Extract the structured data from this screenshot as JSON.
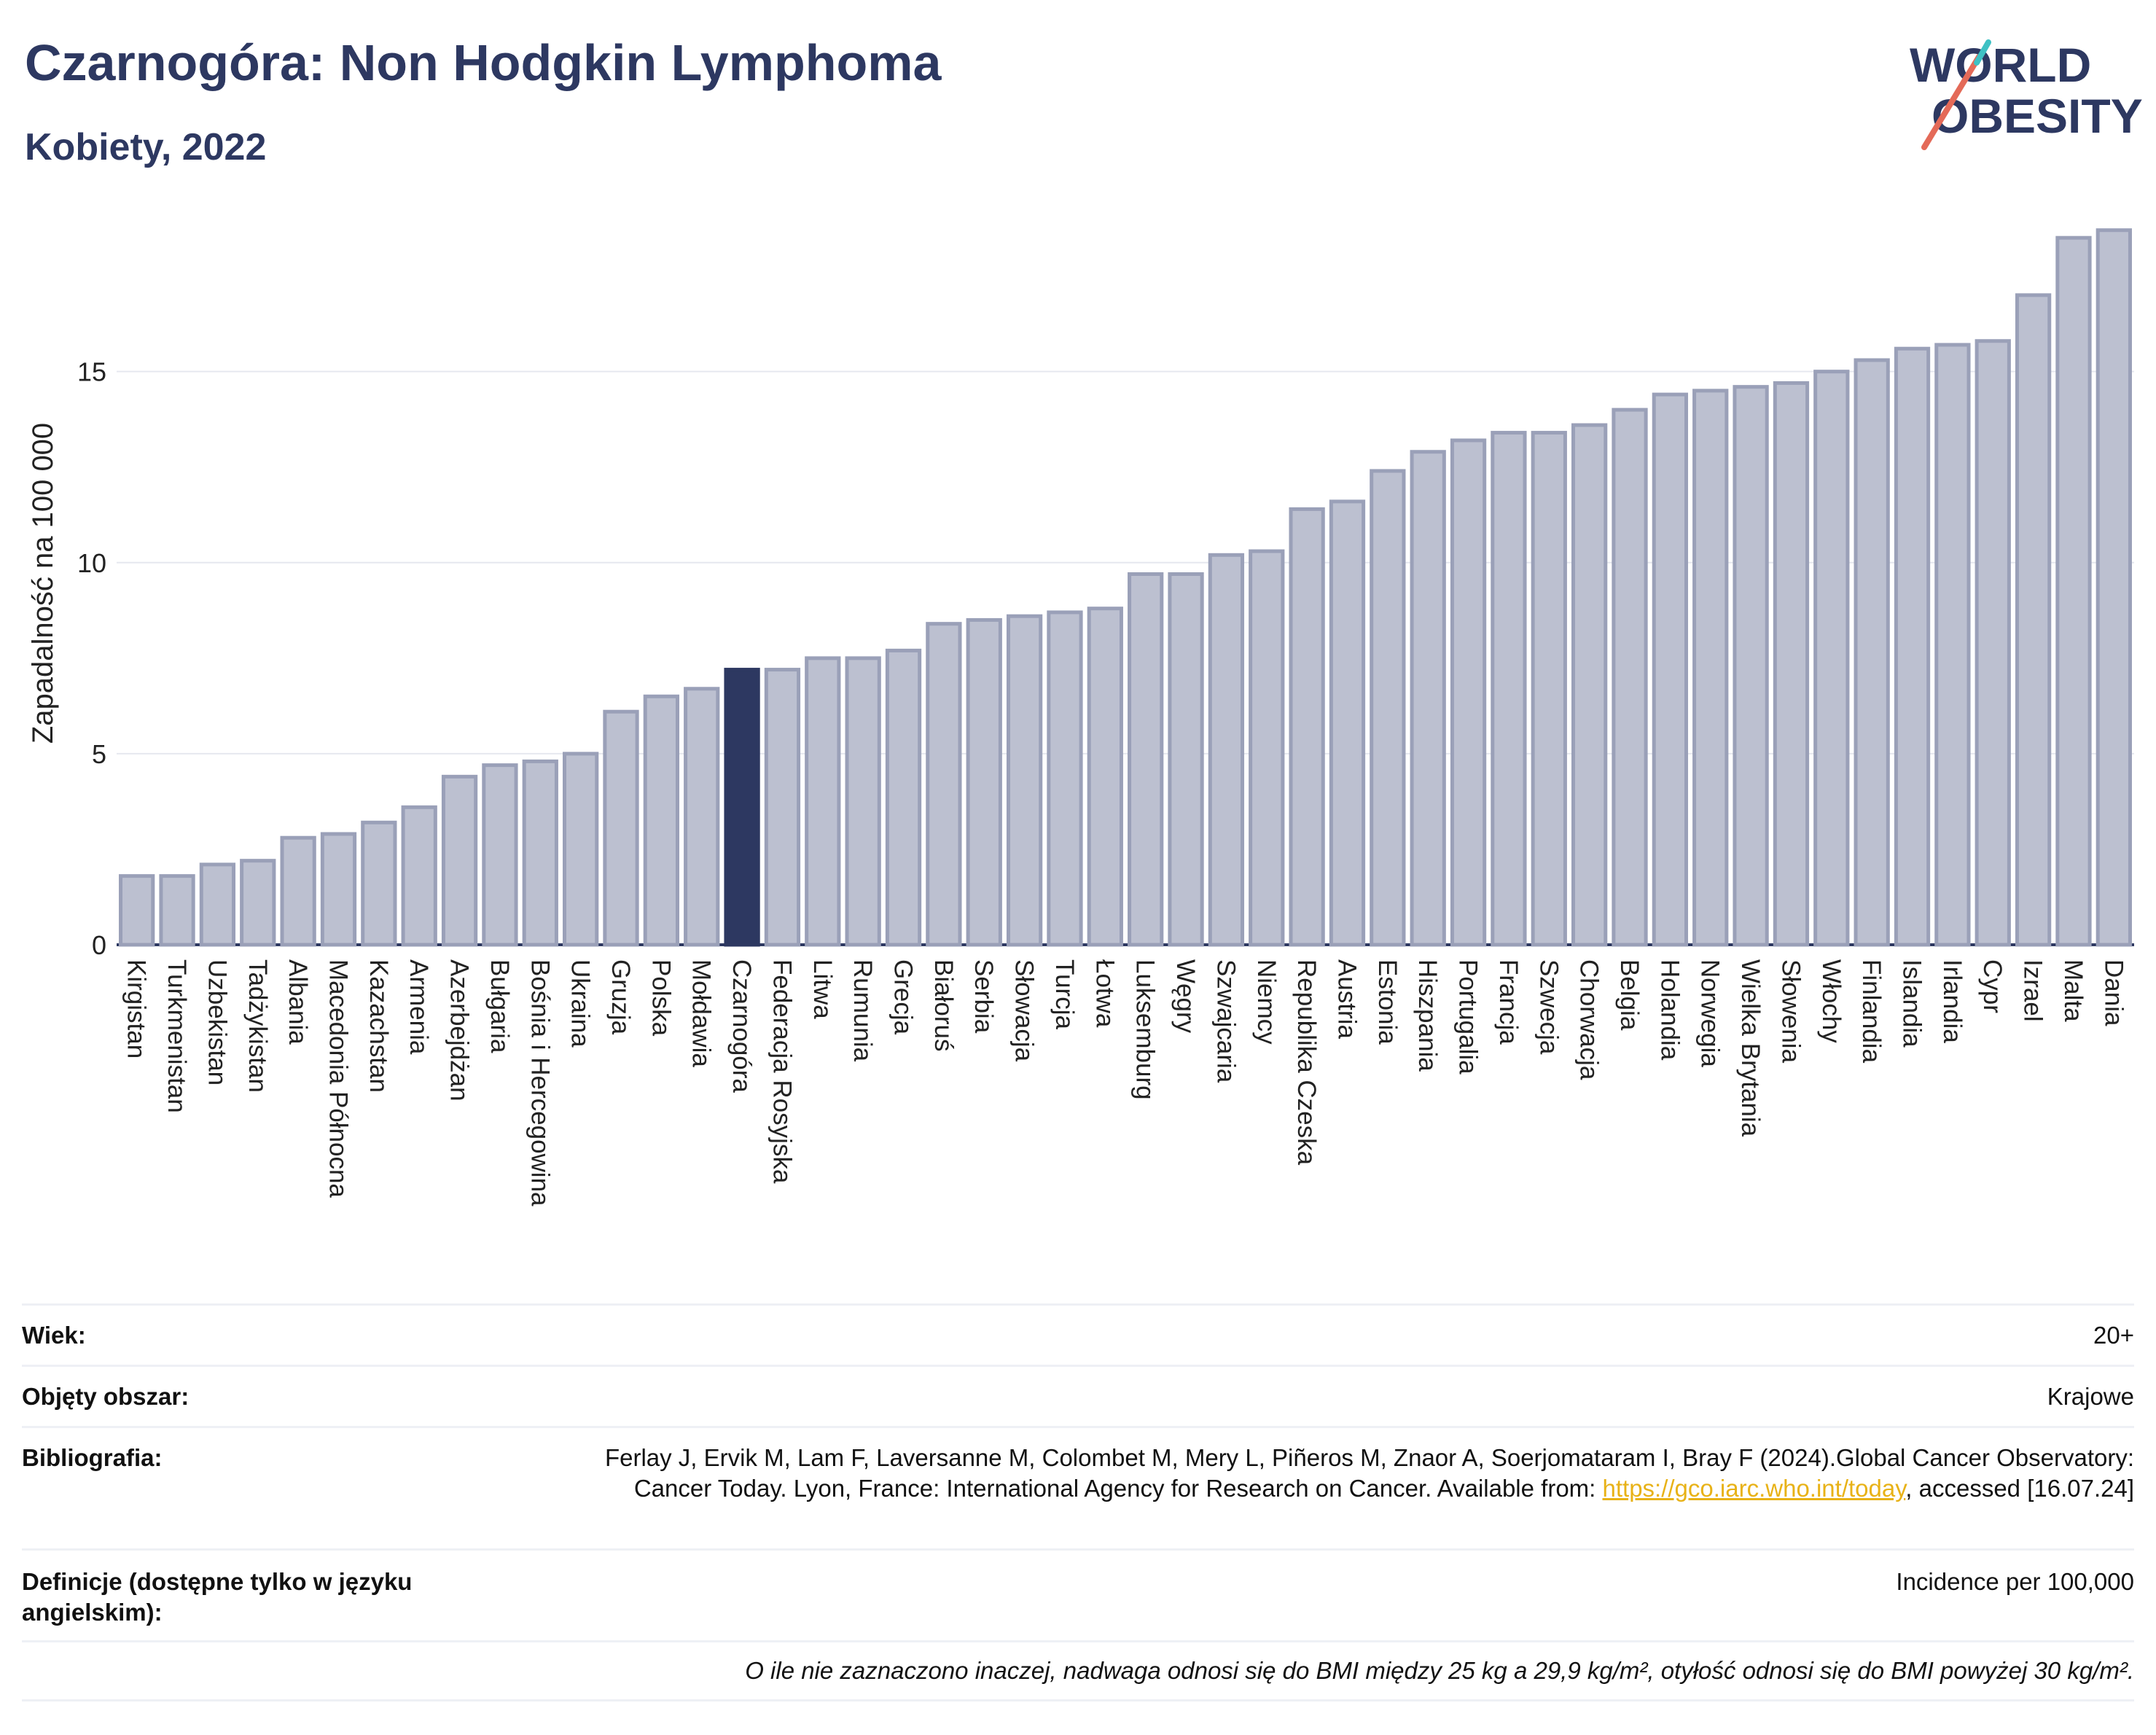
{
  "title": "Czarnogóra: Non Hodgkin Lymphoma",
  "subtitle": "Kobiety, 2022",
  "logo": {
    "line1": "WORLD",
    "line2": "OBESITY"
  },
  "colors": {
    "bar": "#bcc0d0",
    "bar_edge": "#9aa0b8",
    "highlight": "#2d3861",
    "text": "#2d3861"
  },
  "chart_data": {
    "type": "bar",
    "ylabel": "Zapadalność na 100 000",
    "ylim": [
      0,
      19
    ],
    "yticks": [
      0,
      5,
      10,
      15
    ],
    "grid": true,
    "highlight": "Czarnogóra",
    "categories": [
      "Kirgistan",
      "Turkmenistan",
      "Uzbekistan",
      "Tadżykistan",
      "Albania",
      "Macedonia Północna",
      "Kazachstan",
      "Armenia",
      "Azerbejdżan",
      "Bułgaria",
      "Bośnia i Hercegowina",
      "Ukraina",
      "Gruzja",
      "Polska",
      "Mołdawia",
      "Czarnogóra",
      "Federacja Rosyjska",
      "Litwa",
      "Rumunia",
      "Grecja",
      "Białoruś",
      "Serbia",
      "Słowacja",
      "Turcja",
      "Łotwa",
      "Luksemburg",
      "Węgry",
      "Szwajcaria",
      "Niemcy",
      "Republika Czeska",
      "Austria",
      "Estonia",
      "Hiszpania",
      "Portugalia",
      "Francja",
      "Szwecja",
      "Chorwacja",
      "Belgia",
      "Holandia",
      "Norwegia",
      "Wielka Brytania",
      "Słowenia",
      "Włochy",
      "Finlandia",
      "Islandia",
      "Irlandia",
      "Cypr",
      "Izrael",
      "Malta",
      "Dania"
    ],
    "values": [
      1.8,
      1.8,
      2.1,
      2.2,
      2.8,
      2.9,
      3.2,
      3.6,
      4.4,
      4.7,
      4.8,
      5.0,
      6.1,
      6.5,
      6.7,
      7.2,
      7.2,
      7.5,
      7.5,
      7.7,
      8.4,
      8.5,
      8.6,
      8.7,
      8.8,
      9.7,
      9.7,
      10.2,
      10.3,
      11.4,
      11.6,
      12.4,
      12.9,
      13.2,
      13.4,
      13.4,
      13.6,
      14.0,
      14.4,
      14.5,
      14.6,
      14.7,
      15.0,
      15.3,
      15.6,
      15.7,
      15.8,
      17.0,
      18.5,
      18.7
    ]
  },
  "meta": {
    "age_label": "Wiek:",
    "age_value": "20+",
    "area_label": "Objęty obszar:",
    "area_value": "Krajowe",
    "bib_label": "Bibliografia:",
    "bib_text": "Ferlay J, Ervik M, Lam F, Laversanne M, Colombet M, Mery L, Piñeros M, Znaor A, Soerjomataram I, Bray F (2024).Global Cancer Observatory: Cancer Today. Lyon, France: International Agency for Research on Cancer. Available from: ",
    "bib_link": "https://gco.iarc.who.int/today",
    "bib_tail": ", accessed [16.07.24]",
    "def_label": "Definicje (dostępne tylko w języku angielskim):",
    "def_value": "Incidence per 100,000",
    "note": "O ile nie zaznaczono inaczej, nadwaga odnosi się do BMI między 25 kg a 29,9 kg/m², otyłość odnosi się do BMI powyżej 30 kg/m²."
  }
}
